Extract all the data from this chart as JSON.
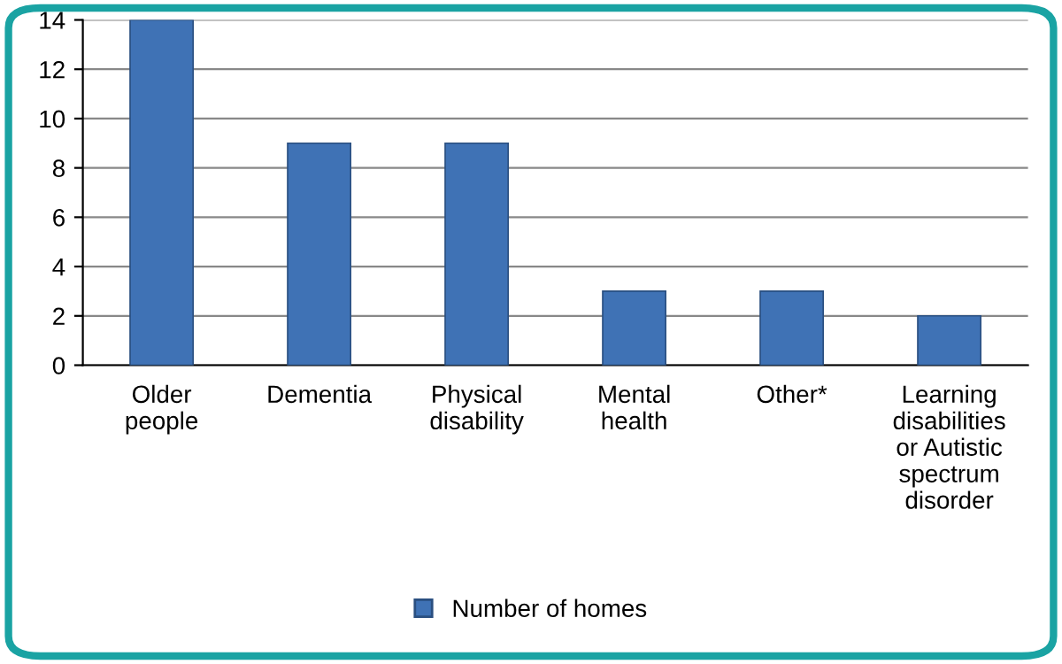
{
  "chart_data": {
    "type": "bar",
    "categories": [
      "Older\npeople",
      "Dementia",
      "Physical\ndisability",
      "Mental\nhealth",
      "Other*",
      "Learning\ndisabilities\nor Autistic\nspectrum\ndisorder"
    ],
    "series": [
      {
        "name": "Number of homes",
        "color": "#3f72b5",
        "values": [
          14,
          9,
          9,
          3,
          3,
          2
        ]
      }
    ],
    "ylim": [
      0,
      14
    ],
    "yticks": [
      0,
      2,
      4,
      6,
      8,
      10,
      12,
      14
    ],
    "grid": "y",
    "legend": "bottom"
  }
}
